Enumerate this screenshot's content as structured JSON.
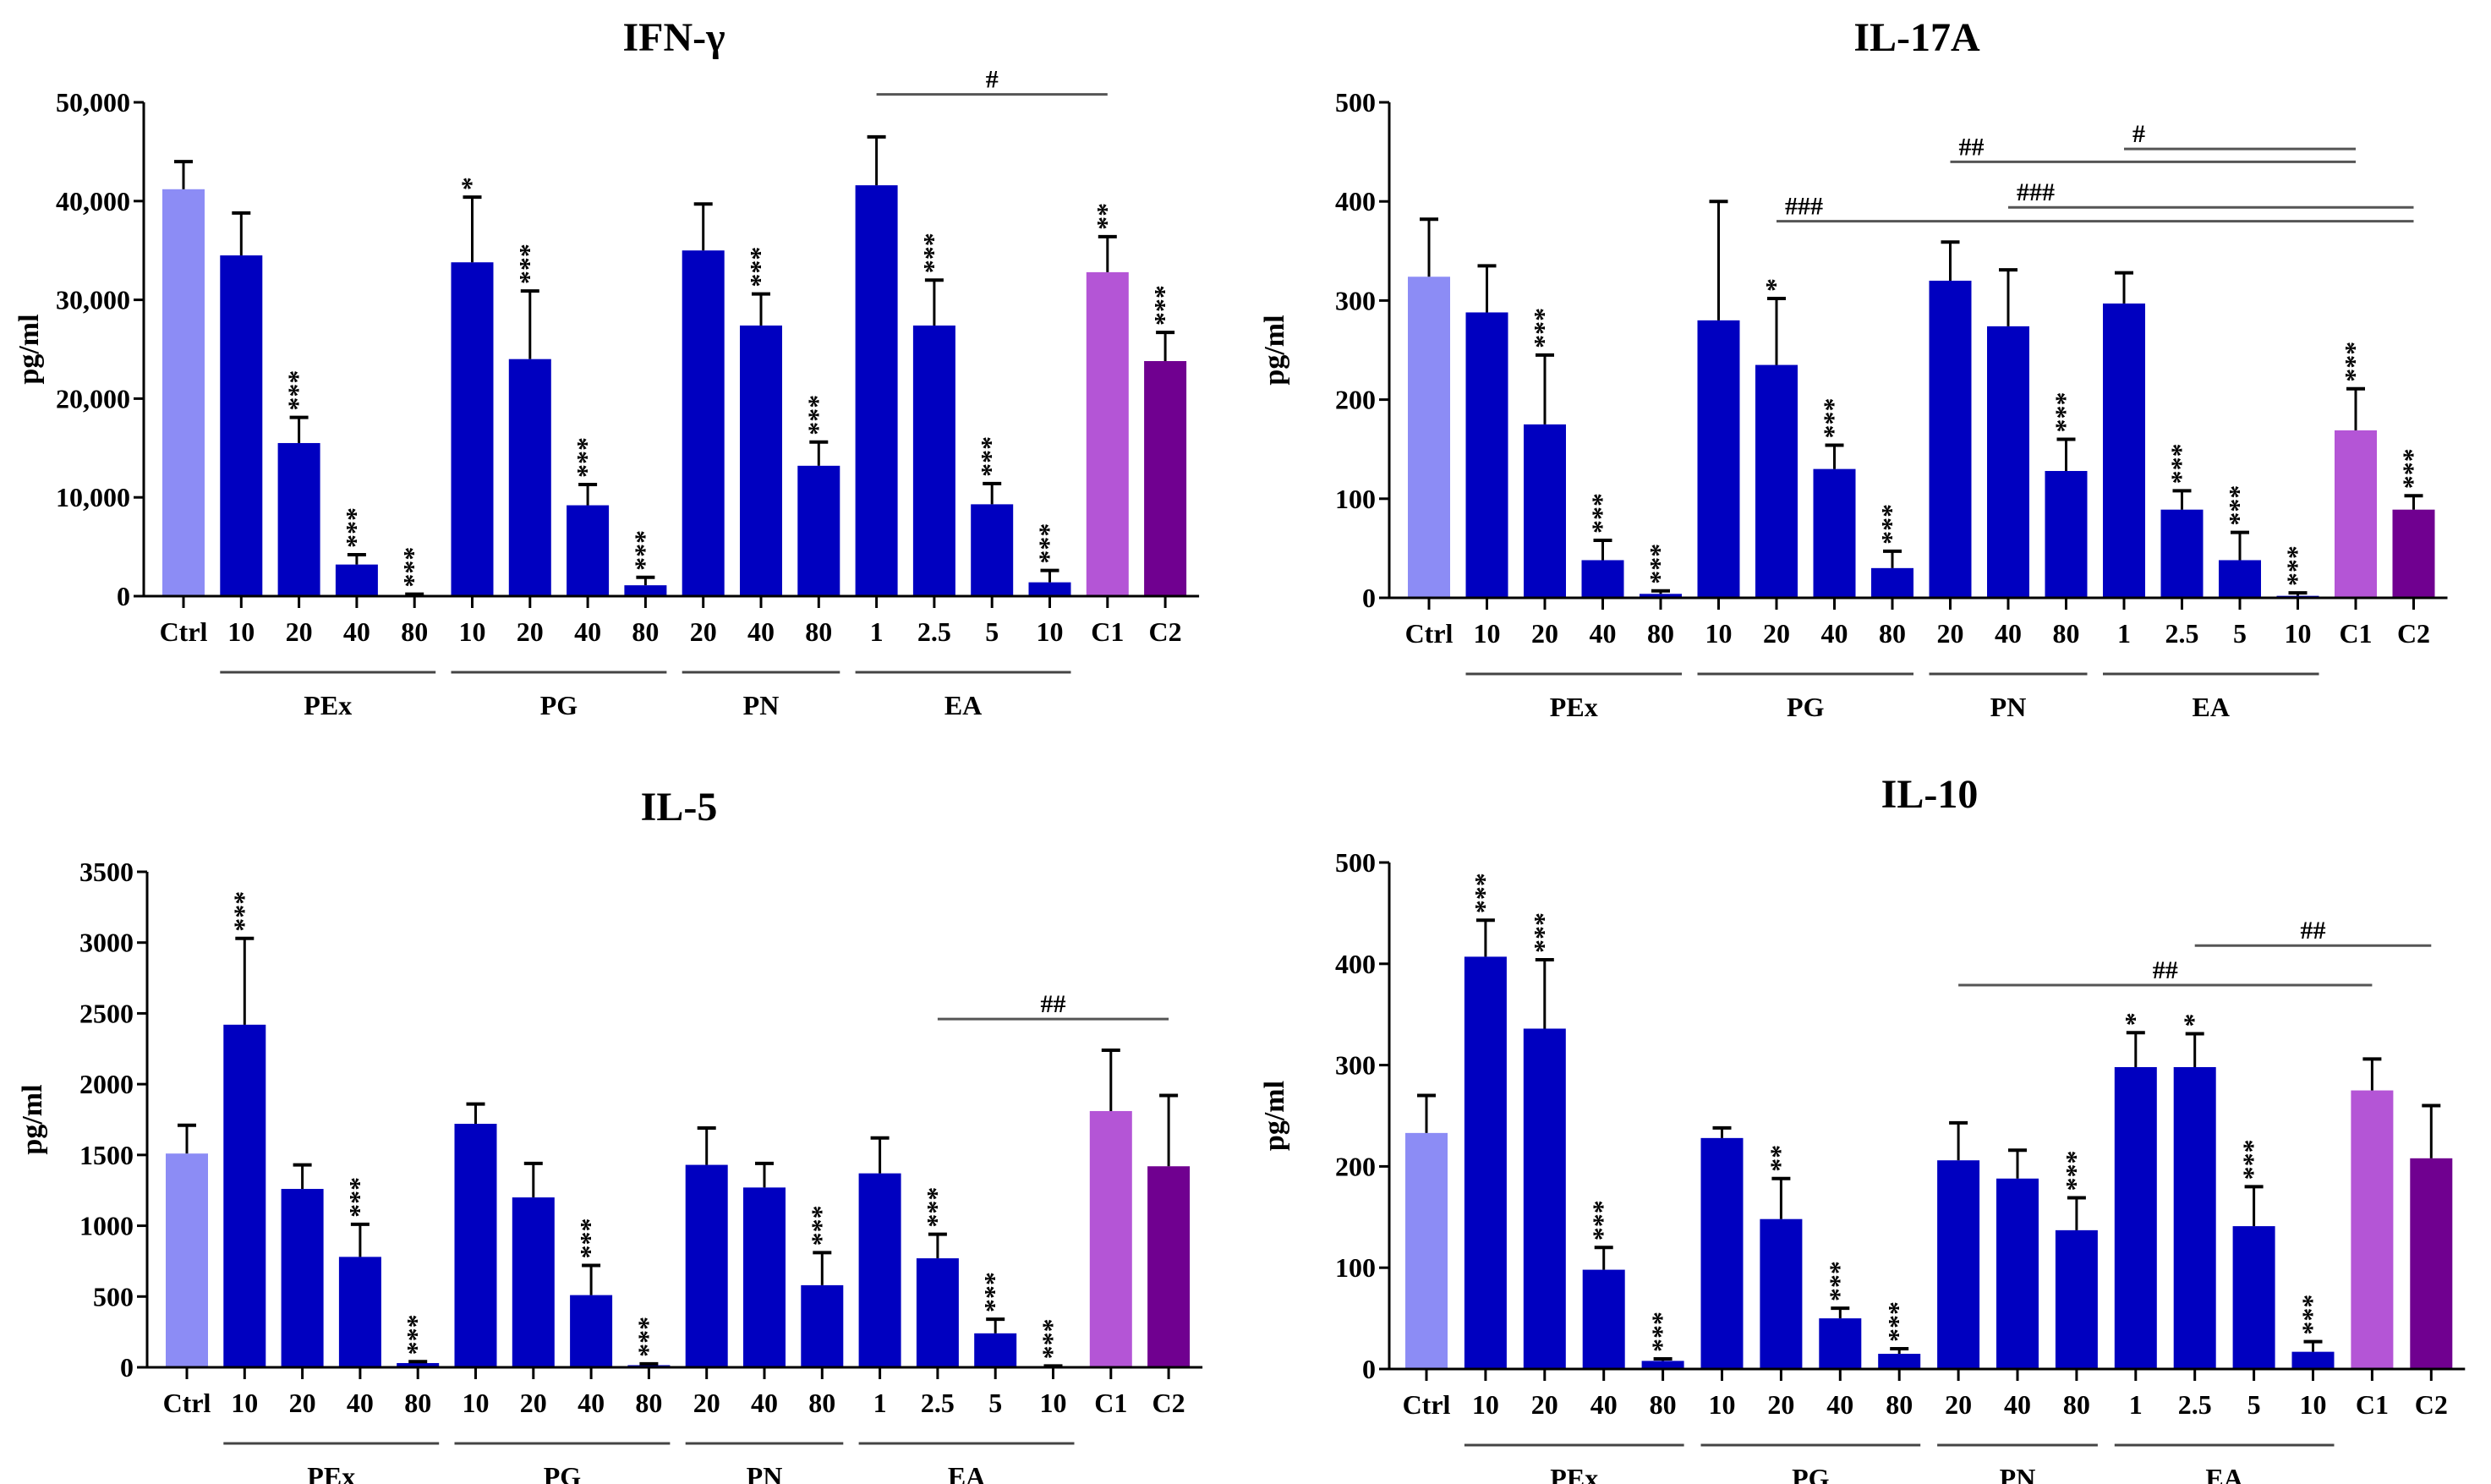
{
  "chart_data": [
    {
      "type": "bar",
      "title": "IFN-γ",
      "ylabel": "pg/ml",
      "ylim": [
        0,
        50000
      ],
      "yticks": [
        "0",
        "10,000",
        "20,000",
        "30,000",
        "40,000",
        "50,000"
      ],
      "ytick_values": [
        0,
        10000,
        20000,
        30000,
        40000,
        50000
      ],
      "categories": [
        "Ctrl",
        "10",
        "20",
        "40",
        "80",
        "10",
        "20",
        "40",
        "80",
        "20",
        "40",
        "80",
        "1",
        "2.5",
        "5",
        "10",
        "C1",
        "C2"
      ],
      "values": [
        41200,
        34500,
        15500,
        3200,
        100,
        33800,
        24000,
        9200,
        1100,
        35000,
        27400,
        13200,
        41600,
        27400,
        9300,
        1400,
        32800,
        23800
      ],
      "errors": [
        2800,
        4300,
        2600,
        1000,
        100,
        6600,
        6900,
        2100,
        800,
        4700,
        3200,
        2400,
        4900,
        4600,
        2100,
        1200,
        3600,
        2900
      ],
      "stars": [
        "",
        "",
        "***",
        "***",
        "***",
        "*",
        "***",
        "***",
        "***",
        "",
        "***",
        "***",
        "",
        "***",
        "***",
        "***",
        "**",
        "***"
      ],
      "groups": [
        {
          "label": "PEx",
          "from": 1,
          "to": 4
        },
        {
          "label": "PG",
          "from": 5,
          "to": 8
        },
        {
          "label": "PN",
          "from": 9,
          "to": 11
        },
        {
          "label": "EA",
          "from": 12,
          "to": 15
        }
      ],
      "comparisons": [
        {
          "label": "#",
          "from": 12,
          "to": 16,
          "value": 50800
        }
      ]
    },
    {
      "type": "bar",
      "title": "IL-17A",
      "ylabel": "pg/ml",
      "ylim": [
        0,
        500
      ],
      "yticks": [
        "0",
        "100",
        "200",
        "300",
        "400",
        "500"
      ],
      "ytick_values": [
        0,
        100,
        200,
        300,
        400,
        500
      ],
      "categories": [
        "Ctrl",
        "10",
        "20",
        "40",
        "80",
        "10",
        "20",
        "40",
        "80",
        "20",
        "40",
        "80",
        "1",
        "2.5",
        "5",
        "10",
        "C1",
        "C2"
      ],
      "values": [
        324,
        288,
        175,
        38,
        4,
        280,
        235,
        130,
        30,
        320,
        274,
        128,
        297,
        89,
        38,
        2,
        169,
        89
      ],
      "errors": [
        58,
        47,
        70,
        20,
        3,
        120,
        67,
        24,
        17,
        39,
        57,
        32,
        31,
        19,
        28,
        3,
        42,
        14
      ],
      "stars": [
        "",
        "",
        "***",
        "***",
        "***",
        "",
        "*",
        "***",
        "***",
        "",
        "",
        "***",
        "",
        "***",
        "***",
        "***",
        "***",
        "***"
      ],
      "groups": [
        {
          "label": "PEx",
          "from": 1,
          "to": 4
        },
        {
          "label": "PG",
          "from": 5,
          "to": 8
        },
        {
          "label": "PN",
          "from": 9,
          "to": 11
        },
        {
          "label": "EA",
          "from": 12,
          "to": 15
        }
      ],
      "comparisons": [
        {
          "label": "#",
          "from": 12,
          "to": 16,
          "value": 453
        },
        {
          "label": "##",
          "from": 9,
          "to": 16,
          "value": 440
        },
        {
          "label": "###",
          "from": 10,
          "to": 17,
          "value": 394
        },
        {
          "label": "###",
          "from": 6,
          "to": 17,
          "value": 380
        }
      ]
    },
    {
      "type": "bar",
      "title": "IL-5",
      "ylabel": "pg/ml",
      "ylim": [
        0,
        3500
      ],
      "yticks": [
        "0",
        "500",
        "1000",
        "1500",
        "2000",
        "2500",
        "3000",
        "3500"
      ],
      "ytick_values": [
        0,
        500,
        1000,
        1500,
        2000,
        2500,
        3000,
        3500
      ],
      "categories": [
        "Ctrl",
        "10",
        "20",
        "40",
        "80",
        "10",
        "20",
        "40",
        "80",
        "20",
        "40",
        "80",
        "1",
        "2.5",
        "5",
        "10",
        "C1",
        "C2"
      ],
      "values": [
        1510,
        2420,
        1260,
        780,
        30,
        1720,
        1200,
        510,
        15,
        1430,
        1270,
        580,
        1370,
        770,
        240,
        5,
        1810,
        1420
      ],
      "errors": [
        200,
        610,
        170,
        230,
        10,
        140,
        240,
        210,
        10,
        260,
        170,
        230,
        250,
        170,
        100,
        5,
        430,
        500
      ],
      "stars": [
        "",
        "***",
        "",
        "***",
        "***",
        "",
        "",
        "***",
        "***",
        "",
        "",
        "***",
        "",
        "***",
        "***",
        "***",
        "",
        ""
      ],
      "groups": [
        {
          "label": "PEx",
          "from": 1,
          "to": 4
        },
        {
          "label": "PG",
          "from": 5,
          "to": 8
        },
        {
          "label": "PN",
          "from": 9,
          "to": 11
        },
        {
          "label": "EA",
          "from": 12,
          "to": 15
        }
      ],
      "comparisons": [
        {
          "label": "##",
          "from": 13,
          "to": 17,
          "value": 2460
        }
      ]
    },
    {
      "type": "bar",
      "title": "IL-10",
      "ylabel": "pg/ml",
      "ylim": [
        0,
        500
      ],
      "yticks": [
        "0",
        "100",
        "200",
        "300",
        "400",
        "500"
      ],
      "ytick_values": [
        0,
        100,
        200,
        300,
        400,
        500
      ],
      "categories": [
        "Ctrl",
        "10",
        "20",
        "40",
        "80",
        "10",
        "20",
        "40",
        "80",
        "20",
        "40",
        "80",
        "1",
        "2.5",
        "5",
        "10",
        "C1",
        "C2"
      ],
      "values": [
        233,
        407,
        336,
        98,
        8,
        228,
        148,
        50,
        15,
        206,
        188,
        137,
        298,
        298,
        141,
        17,
        275,
        208
      ],
      "errors": [
        37,
        36,
        68,
        22,
        2,
        10,
        40,
        10,
        5,
        37,
        28,
        32,
        34,
        33,
        39,
        10,
        31,
        52
      ],
      "stars": [
        "",
        "***",
        "***",
        "***",
        "***",
        "",
        "**",
        "***",
        "***",
        "",
        "",
        "***",
        "*",
        "*",
        "***",
        "***",
        "",
        ""
      ],
      "groups": [
        {
          "label": "PEx",
          "from": 1,
          "to": 4
        },
        {
          "label": "PG",
          "from": 5,
          "to": 8
        },
        {
          "label": "PN",
          "from": 9,
          "to": 11
        },
        {
          "label": "EA",
          "from": 12,
          "to": 15
        }
      ],
      "comparisons": [
        {
          "label": "##",
          "from": 9,
          "to": 16,
          "value": 379
        },
        {
          "label": "##",
          "from": 13,
          "to": 17,
          "value": 418
        }
      ]
    }
  ],
  "colors": {
    "ctrl": "#8c8cf5",
    "treatment": "#0000c0",
    "c1": "#b455d6",
    "c2": "#700090",
    "axis": "#000000",
    "comparison_line": "#555555"
  }
}
